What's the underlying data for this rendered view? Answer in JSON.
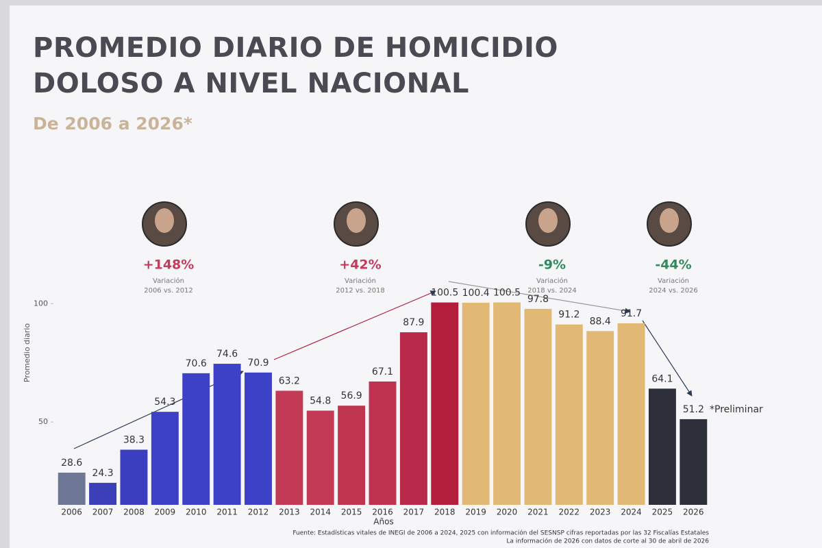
{
  "chart_data": {
    "type": "bar",
    "title": "PROMEDIO DIARIO DE HOMICIDIO DOLOSO A NIVEL NACIONAL",
    "subtitle": "De 2006 a 2026*",
    "y_label": "Promedio diario",
    "x_label": "Años",
    "categories": [
      "2006",
      "2007",
      "2008",
      "2009",
      "2010",
      "2011",
      "2012",
      "2013",
      "2014",
      "2015",
      "2016",
      "2017",
      "2018",
      "2019",
      "2020",
      "2021",
      "2022",
      "2023",
      "2024",
      "2025",
      "2026"
    ],
    "values": [
      28.6,
      24.3,
      38.3,
      54.3,
      70.6,
      74.6,
      70.9,
      63.2,
      54.8,
      56.9,
      67.1,
      87.9,
      100.5,
      100.4,
      100.5,
      97.8,
      91.2,
      88.4,
      91.7,
      64.1,
      51.2
    ],
    "colors": [
      "#6f7796",
      "#3b3fb8",
      "#3b3fbf",
      "#3c40c4",
      "#3d41c8",
      "#3d41c8",
      "#3d41c8",
      "#c23a55",
      "#c23a55",
      "#c03650",
      "#bf3350",
      "#b9294a",
      "#b21e3c",
      "#e2b974",
      "#e2b974",
      "#e2b974",
      "#e2b974",
      "#e2b974",
      "#e2b974",
      "#2d2f3b",
      "#2d2f3b"
    ],
    "ylim": [
      15,
      105
    ],
    "yticks": [
      50,
      100
    ],
    "grid": false,
    "footnote": "*Preliminar",
    "annotations": [
      {
        "text": "+148%",
        "label": "Variación",
        "period": "2006 vs. 2012",
        "color": "#c43a5c"
      },
      {
        "text": "+42%",
        "label": "Variación",
        "period": "2012 vs. 2018",
        "color": "#c43a5c"
      },
      {
        "text": "-9%",
        "label": "Variación",
        "period": "2018 vs. 2024",
        "color": "#2f8a5e"
      },
      {
        "text": "-44%",
        "label": "Variación",
        "period": "2024 vs. 2026",
        "color": "#2f8a5e"
      }
    ],
    "source": [
      "Fuente: Estadísticas vitales de INEGI de 2006 a 2024, 2025 con información del SESNSP cifras reportadas por las 32 Fiscalías Estatales",
      "La información de 2026 con datos de corte al 30 de abril de 2026"
    ]
  }
}
